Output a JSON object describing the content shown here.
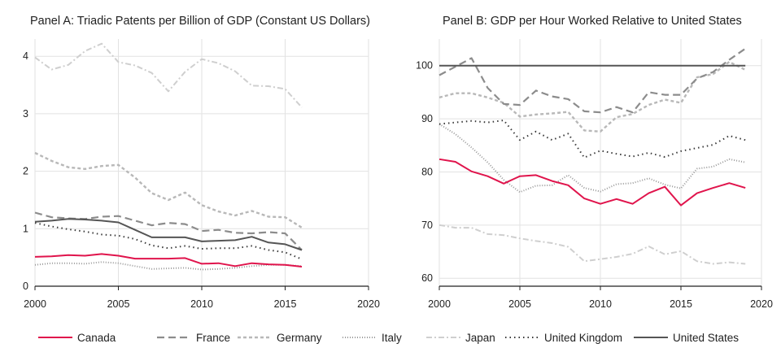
{
  "chart_data": [
    {
      "type": "line",
      "title": "Panel A: Triadic Patents per Billion of GDP (Constant US Dollars)",
      "xlabel": "",
      "ylabel": "",
      "xlim": [
        2000,
        2020
      ],
      "ylim": [
        0,
        4.3
      ],
      "xticks": [
        2000,
        2005,
        2010,
        2015,
        2020
      ],
      "yticks": [
        0,
        1,
        2,
        3,
        4
      ],
      "grid": true,
      "x": [
        2000,
        2001,
        2002,
        2003,
        2004,
        2005,
        2006,
        2007,
        2008,
        2009,
        2010,
        2011,
        2012,
        2013,
        2014,
        2015,
        2016
      ],
      "series": [
        {
          "name": "Canada",
          "values": [
            0.51,
            0.52,
            0.54,
            0.53,
            0.56,
            0.53,
            0.48,
            0.48,
            0.48,
            0.49,
            0.39,
            0.4,
            0.35,
            0.4,
            0.38,
            0.37,
            0.34
          ]
        },
        {
          "name": "France",
          "values": [
            1.28,
            1.2,
            1.18,
            1.17,
            1.21,
            1.22,
            1.14,
            1.06,
            1.1,
            1.08,
            0.96,
            0.98,
            0.93,
            0.92,
            0.94,
            0.92,
            0.63
          ]
        },
        {
          "name": "Germany",
          "values": [
            2.32,
            2.18,
            2.07,
            2.04,
            2.09,
            2.11,
            1.89,
            1.62,
            1.5,
            1.63,
            1.41,
            1.3,
            1.23,
            1.31,
            1.21,
            1.2,
            1.02
          ]
        },
        {
          "name": "Italy",
          "values": [
            0.37,
            0.4,
            0.4,
            0.39,
            0.42,
            0.4,
            0.35,
            0.3,
            0.31,
            0.32,
            0.29,
            0.3,
            0.32,
            0.35,
            0.37,
            0.37,
            0.35
          ]
        },
        {
          "name": "Japan",
          "values": [
            3.98,
            3.77,
            3.85,
            4.09,
            4.22,
            3.9,
            3.84,
            3.71,
            3.39,
            3.73,
            3.95,
            3.88,
            3.74,
            3.49,
            3.48,
            3.43,
            3.11
          ]
        },
        {
          "name": "United Kingdom",
          "values": [
            1.1,
            1.04,
            0.99,
            0.95,
            0.9,
            0.88,
            0.82,
            0.71,
            0.66,
            0.7,
            0.65,
            0.66,
            0.66,
            0.7,
            0.63,
            0.59,
            0.47
          ]
        },
        {
          "name": "United States",
          "values": [
            1.12,
            1.14,
            1.17,
            1.16,
            1.14,
            1.11,
            0.98,
            0.85,
            0.85,
            0.85,
            0.78,
            0.79,
            0.8,
            0.86,
            0.76,
            0.73,
            0.63
          ]
        }
      ]
    },
    {
      "type": "line",
      "title": "Panel B: GDP per Hour Worked Relative to United States",
      "xlabel": "",
      "ylabel": "",
      "xlim": [
        2000,
        2020
      ],
      "ylim": [
        58.5,
        105
      ],
      "xticks": [
        2000,
        2005,
        2010,
        2015,
        2020
      ],
      "yticks": [
        60,
        70,
        80,
        90,
        100
      ],
      "grid": true,
      "x": [
        2000,
        2001,
        2002,
        2003,
        2004,
        2005,
        2006,
        2007,
        2008,
        2009,
        2010,
        2011,
        2012,
        2013,
        2014,
        2015,
        2016,
        2017,
        2018,
        2019
      ],
      "series": [
        {
          "name": "Canada",
          "values": [
            82.4,
            81.9,
            80.1,
            79.2,
            77.8,
            79.2,
            79.4,
            78.3,
            77.5,
            75.0,
            74.0,
            74.9,
            74.0,
            76.0,
            77.2,
            73.7,
            76.0,
            77.0,
            77.9,
            77.0
          ]
        },
        {
          "name": "France",
          "values": [
            98.2,
            99.8,
            101.4,
            95.8,
            92.8,
            92.6,
            95.3,
            94.2,
            93.7,
            91.4,
            91.2,
            92.2,
            91.2,
            95.0,
            94.5,
            94.5,
            97.6,
            98.8,
            101.1,
            103.2
          ]
        },
        {
          "name": "Germany",
          "values": [
            94.0,
            94.8,
            94.8,
            94.0,
            93.0,
            90.4,
            90.8,
            91.0,
            91.3,
            87.8,
            87.6,
            90.3,
            90.9,
            92.6,
            93.6,
            93.0,
            97.8,
            98.4,
            100.7,
            99.2
          ]
        },
        {
          "name": "Italy",
          "values": [
            89.0,
            87.1,
            84.6,
            81.8,
            78.5,
            76.2,
            77.4,
            77.5,
            79.4,
            77.0,
            76.3,
            77.7,
            77.9,
            78.8,
            77.6,
            76.9,
            80.6,
            81.0,
            82.4,
            81.8
          ]
        },
        {
          "name": "Japan",
          "values": [
            70.0,
            69.5,
            69.5,
            68.3,
            68.1,
            67.5,
            67.0,
            66.6,
            65.9,
            63.2,
            63.6,
            64.0,
            64.6,
            66.0,
            64.5,
            65.1,
            63.2,
            62.7,
            63.0,
            62.7
          ]
        },
        {
          "name": "United Kingdom",
          "values": [
            89.0,
            89.3,
            89.6,
            89.3,
            89.7,
            86.0,
            87.6,
            86.0,
            87.2,
            82.7,
            84.0,
            83.4,
            82.9,
            83.6,
            82.8,
            83.9,
            84.5,
            85.1,
            86.8,
            86.0
          ]
        },
        {
          "name": "United States",
          "values": [
            100,
            100,
            100,
            100,
            100,
            100,
            100,
            100,
            100,
            100,
            100,
            100,
            100,
            100,
            100,
            100,
            100,
            100,
            100,
            100
          ]
        }
      ]
    }
  ],
  "legend": {
    "placement": "bottom",
    "items": [
      {
        "name": "Canada",
        "color": "#e0144c",
        "style": "solid"
      },
      {
        "name": "France",
        "color": "#8c8c8c",
        "style": "dashed"
      },
      {
        "name": "Germany",
        "color": "#b8b8b8",
        "style": "short-dashed"
      },
      {
        "name": "Italy",
        "color": "#9a9a9a",
        "style": "dotted"
      },
      {
        "name": "Japan",
        "color": "#cfcfcf",
        "style": "dash-dot"
      },
      {
        "name": "United Kingdom",
        "color": "#3a3a3a",
        "style": "sparse-dotted"
      },
      {
        "name": "United States",
        "color": "#555555",
        "style": "solid"
      }
    ]
  }
}
